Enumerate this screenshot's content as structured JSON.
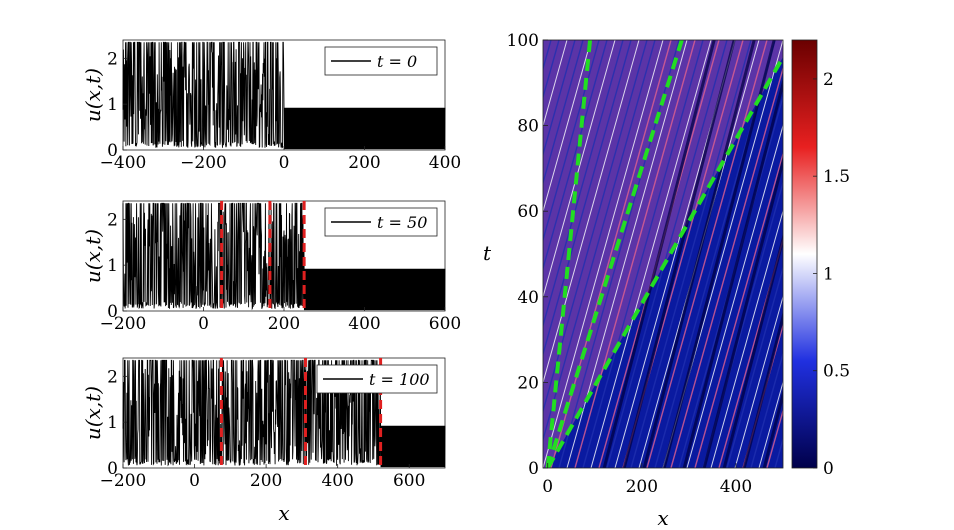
{
  "chart_data": [
    {
      "type": "line",
      "panel": "top-left",
      "ylabel": "u(x,t)",
      "xlabel": "",
      "xlim": [
        -400,
        400
      ],
      "ylim": [
        0,
        2.4
      ],
      "xticks": [
        "-400",
        "-200",
        "0",
        "200",
        "400"
      ],
      "yticks": [
        "0",
        "1",
        "2"
      ],
      "legend": "t = 0",
      "legend_placement": "top-right",
      "series": [
        {
          "description_region": "x < 0: random spikes between 0 and 2.4",
          "x_range": [
            -400,
            0
          ],
          "y_range": [
            0,
            2.35
          ]
        },
        {
          "description_region": "x > 0: periodic oscillation between 0 and 0.95",
          "x_range": [
            0,
            400
          ],
          "y_range": [
            0,
            0.95
          ]
        }
      ],
      "markers": []
    },
    {
      "type": "line",
      "panel": "middle-left",
      "ylabel": "u(x,t)",
      "xlabel": "",
      "xlim": [
        -200,
        600
      ],
      "ylim": [
        0,
        2.4
      ],
      "xticks": [
        "-200",
        "0",
        "200",
        "400",
        "600"
      ],
      "yticks": [
        "0",
        "1",
        "2"
      ],
      "legend": "t = 50",
      "legend_placement": "top-right",
      "series": [
        {
          "x_range": [
            -200,
            250
          ],
          "y_range": [
            0,
            2.35
          ]
        },
        {
          "x_range": [
            250,
            600
          ],
          "y_range": [
            0,
            0.95
          ]
        }
      ],
      "markers": [
        45,
        165,
        250
      ]
    },
    {
      "type": "line",
      "panel": "bottom-left",
      "ylabel": "u(x,t)",
      "xlabel": "x",
      "xlim": [
        -200,
        700
      ],
      "ylim": [
        0,
        2.4
      ],
      "xticks": [
        "-200",
        "0",
        "200",
        "400",
        "600"
      ],
      "yticks": [
        "0",
        "1",
        "2"
      ],
      "legend": "t = 100",
      "legend_placement": "top-right",
      "series": [
        {
          "x_range": [
            -200,
            520
          ],
          "y_range": [
            0,
            2.35
          ]
        },
        {
          "x_range": [
            520,
            700
          ],
          "y_range": [
            0,
            0.95
          ]
        }
      ],
      "markers": [
        75,
        310,
        520
      ]
    },
    {
      "type": "heatmap",
      "panel": "right",
      "xlabel": "x",
      "ylabel": "t",
      "xlim": [
        -10,
        500
      ],
      "ylim": [
        0,
        100
      ],
      "xticks": [
        "0",
        "200",
        "400"
      ],
      "yticks": [
        "0",
        "20",
        "40",
        "60",
        "80",
        "100"
      ],
      "colorbar": {
        "range": [
          0,
          2.2
        ],
        "ticks": [
          "0",
          "0.5",
          "1",
          "1.5",
          "2"
        ],
        "colormap": [
          "#00004a",
          "#2030e0",
          "#ffffff",
          "#e82020",
          "#6a0000"
        ]
      },
      "boundary_lines": [
        {
          "x0": 0,
          "t0": 0,
          "x1": 90,
          "t1": 100
        },
        {
          "x0": 0,
          "t0": 0,
          "x1": 285,
          "t1": 100
        },
        {
          "x0": 0,
          "t0": 0,
          "x1": 500,
          "t1": 96
        }
      ],
      "boundary_color": "#22dd22"
    }
  ]
}
